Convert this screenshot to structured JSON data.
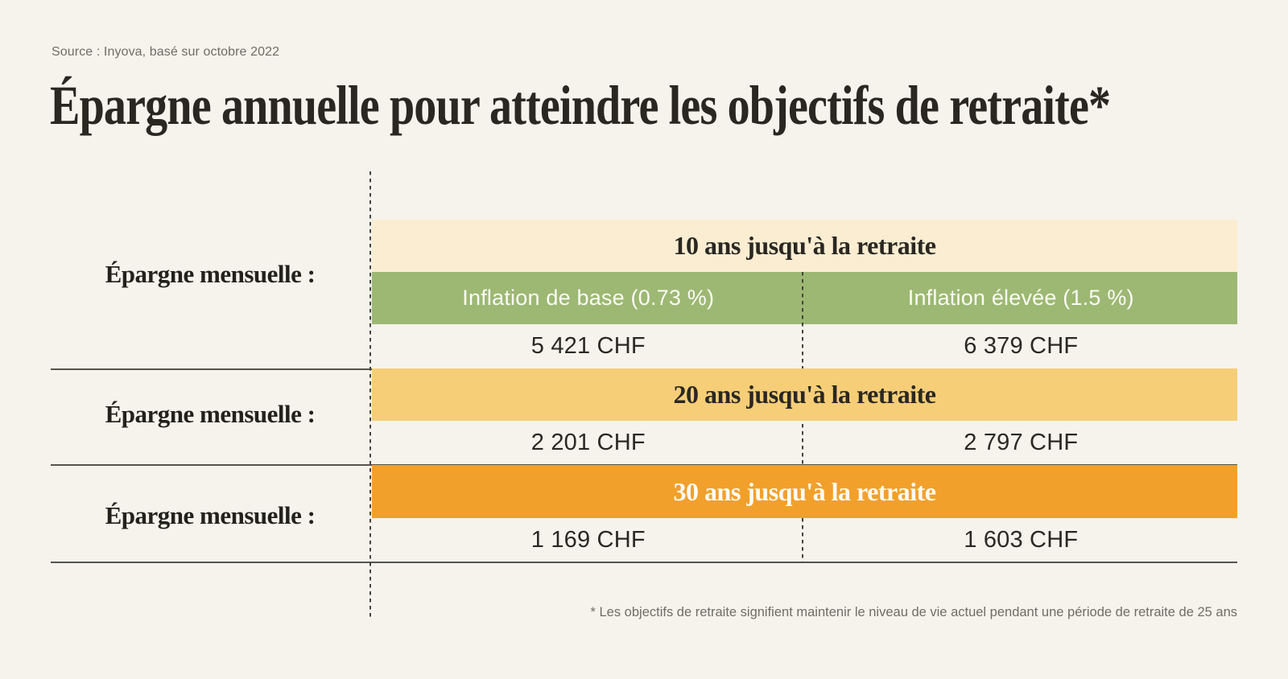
{
  "source_caption": "Source : Inyova, basé sur octobre 2022",
  "title": "Épargne annuelle pour atteindre les objectifs de retraite*",
  "row_label": "Épargne mensuelle :",
  "columns": [
    "Inflation de base (0.73 %)",
    "Inflation élevée (1.5 %)"
  ],
  "rows": [
    {
      "header": "10 ans jusqu'à la retraite",
      "values": [
        "5 421 CHF",
        "6 379 CHF"
      ]
    },
    {
      "header": "20 ans jusqu'à la retraite",
      "values": [
        "2 201 CHF",
        "2 797 CHF"
      ]
    },
    {
      "header": "30 ans jusqu'à la retraite",
      "values": [
        "1 169 CHF",
        "1 603 CHF"
      ]
    }
  ],
  "footnote": "* Les objectifs de retraite signifient maintenir le niveau de vie actuel pendant une période de retraite de 25 ans",
  "colors": {
    "background": "#f5f3eb",
    "band_10_years": "#fbedd2",
    "band_inflation": "#9cb873",
    "band_20_years": "#f6ce78",
    "band_30_years": "#f2a02c",
    "dark_text": "#2a2722",
    "muted_text": "#6f6d65",
    "line": "#56544d"
  },
  "chart_data": {
    "type": "table",
    "title": "Épargne annuelle pour atteindre les objectifs de retraite*",
    "source": "Source : Inyova, basé sur octobre 2022",
    "row_label": "Épargne mensuelle :",
    "row_groups": [
      "10 ans jusqu'à la retraite",
      "20 ans jusqu'à la retraite",
      "30 ans jusqu'à la retraite"
    ],
    "columns": [
      "Inflation de base (0.73 %)",
      "Inflation élevée (1.5 %)"
    ],
    "values_chf": [
      [
        5421,
        6379
      ],
      [
        2201,
        2797
      ],
      [
        1169,
        1603
      ]
    ],
    "unit": "CHF",
    "footnote": "* Les objectifs de retraite signifient maintenir le niveau de vie actuel pendant une période de retraite de 25 ans"
  }
}
